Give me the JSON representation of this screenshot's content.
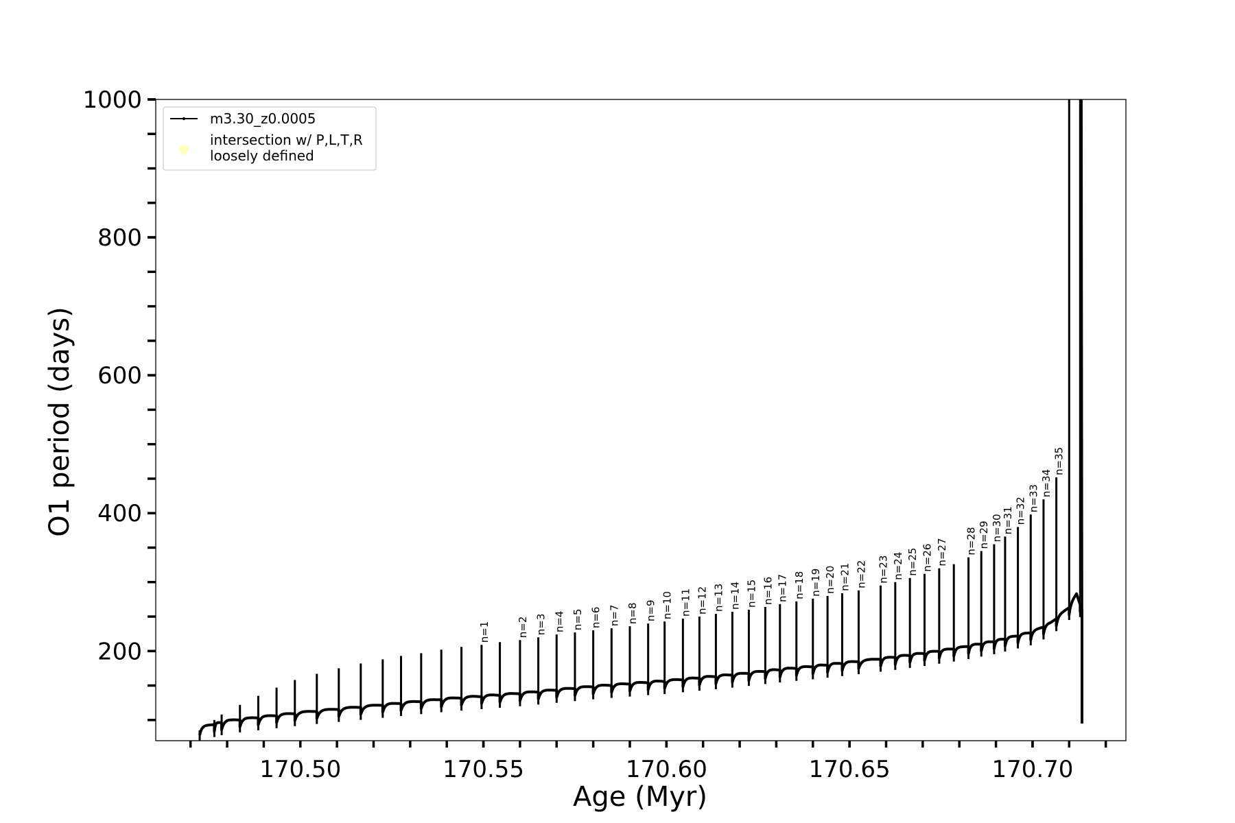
{
  "chart_data": {
    "type": "line",
    "xlabel": "Age (Myr)",
    "ylabel": "O1 period (days)",
    "xlim": [
      170.4605,
      170.7255
    ],
    "ylim": [
      70,
      1000
    ],
    "x_ticks": [
      {
        "value": 170.5,
        "label": "170.50"
      },
      {
        "value": 170.55,
        "label": "170.55"
      },
      {
        "value": 170.6,
        "label": "170.60"
      },
      {
        "value": 170.65,
        "label": "170.65"
      },
      {
        "value": 170.7,
        "label": "170.70"
      }
    ],
    "x_minor_step": 0.01,
    "y_ticks": [
      {
        "value": 200,
        "label": "200"
      },
      {
        "value": 400,
        "label": "400"
      },
      {
        "value": 600,
        "label": "600"
      },
      {
        "value": 800,
        "label": "800"
      },
      {
        "value": 1000,
        "label": "1000"
      }
    ],
    "y_minor_step": 50,
    "legend": {
      "placement": "top-left",
      "entries": [
        {
          "label": "m3.30_z0.0005",
          "style": "line",
          "color": "#000000"
        },
        {
          "label_lines": [
            "intersection w/ P,L,T,R",
            "loosely defined"
          ],
          "style": "marker",
          "color": "#ffffc0"
        }
      ]
    },
    "series": [
      {
        "color": "#000000",
        "baseline": {
          "x": [
            170.4725,
            170.48,
            170.49,
            170.5,
            170.51,
            170.52,
            170.53,
            170.54,
            170.55,
            170.56,
            170.57,
            170.58,
            170.59,
            170.6,
            170.61,
            170.62,
            170.63,
            170.64,
            170.65,
            170.66,
            170.67,
            170.68,
            170.69,
            170.7,
            170.705,
            170.71,
            170.712,
            170.7135
          ],
          "y": [
            88,
            98,
            104,
            110,
            115,
            120,
            125,
            130,
            134,
            138,
            143,
            148,
            152,
            156,
            161,
            166,
            172,
            177,
            183,
            189,
            196,
            204,
            214,
            227,
            240,
            263,
            282,
            260
          ]
        },
        "pulses": [
          {
            "x": 170.4725,
            "peak": 85
          },
          {
            "x": 170.4765,
            "peak": 100
          },
          {
            "x": 170.4785,
            "peak": 108
          },
          {
            "x": 170.4835,
            "peak": 122
          },
          {
            "x": 170.4885,
            "peak": 135
          },
          {
            "x": 170.4935,
            "peak": 147
          },
          {
            "x": 170.4985,
            "peak": 158
          },
          {
            "x": 170.5045,
            "peak": 167
          },
          {
            "x": 170.5105,
            "peak": 175
          },
          {
            "x": 170.5165,
            "peak": 182
          },
          {
            "x": 170.5225,
            "peak": 188
          },
          {
            "x": 170.5275,
            "peak": 193
          },
          {
            "x": 170.533,
            "peak": 197
          },
          {
            "x": 170.5385,
            "peak": 202
          },
          {
            "x": 170.544,
            "peak": 206
          },
          {
            "x": 170.5495,
            "peak": 209,
            "label": "n=1"
          },
          {
            "x": 170.5545,
            "peak": 213
          },
          {
            "x": 170.56,
            "peak": 216,
            "label": "n=2"
          },
          {
            "x": 170.565,
            "peak": 220,
            "label": "n=3"
          },
          {
            "x": 170.57,
            "peak": 224,
            "label": "n=4"
          },
          {
            "x": 170.575,
            "peak": 227,
            "label": "n=5"
          },
          {
            "x": 170.58,
            "peak": 230,
            "label": "n=6"
          },
          {
            "x": 170.585,
            "peak": 233,
            "label": "n=7"
          },
          {
            "x": 170.59,
            "peak": 236,
            "label": "n=8"
          },
          {
            "x": 170.595,
            "peak": 240,
            "label": "n=9"
          },
          {
            "x": 170.5995,
            "peak": 243,
            "label": "n=10"
          },
          {
            "x": 170.6045,
            "peak": 247,
            "label": "n=11"
          },
          {
            "x": 170.609,
            "peak": 250,
            "label": "n=12"
          },
          {
            "x": 170.6135,
            "peak": 254,
            "label": "n=13"
          },
          {
            "x": 170.618,
            "peak": 257,
            "label": "n=14"
          },
          {
            "x": 170.6225,
            "peak": 260,
            "label": "n=15"
          },
          {
            "x": 170.627,
            "peak": 264,
            "label": "n=16"
          },
          {
            "x": 170.631,
            "peak": 268,
            "label": "n=17"
          },
          {
            "x": 170.6355,
            "peak": 272,
            "label": "n=18"
          },
          {
            "x": 170.64,
            "peak": 276,
            "label": "n=19"
          },
          {
            "x": 170.644,
            "peak": 280,
            "label": "n=20"
          },
          {
            "x": 170.648,
            "peak": 284,
            "label": "n=21"
          },
          {
            "x": 170.6525,
            "peak": 288,
            "label": "n=22"
          },
          {
            "x": 170.6585,
            "peak": 295,
            "label": "n=23"
          },
          {
            "x": 170.6625,
            "peak": 300,
            "label": "n=24"
          },
          {
            "x": 170.6665,
            "peak": 306,
            "label": "n=25"
          },
          {
            "x": 170.6705,
            "peak": 312,
            "label": "n=26"
          },
          {
            "x": 170.6745,
            "peak": 320,
            "label": "n=27"
          },
          {
            "x": 170.6785,
            "peak": 326
          },
          {
            "x": 170.6825,
            "peak": 336,
            "label": "n=28"
          },
          {
            "x": 170.686,
            "peak": 345,
            "label": "n=29"
          },
          {
            "x": 170.6895,
            "peak": 355,
            "label": "n=30"
          },
          {
            "x": 170.6925,
            "peak": 366,
            "label": "n=31"
          },
          {
            "x": 170.696,
            "peak": 380,
            "label": "n=32"
          },
          {
            "x": 170.6995,
            "peak": 398,
            "label": "n=33"
          },
          {
            "x": 170.703,
            "peak": 420,
            "label": "n=34"
          },
          {
            "x": 170.7065,
            "peak": 452,
            "label": "n=35"
          },
          {
            "x": 170.71,
            "peak": 1000
          },
          {
            "x": 170.713,
            "peak": 1000
          }
        ],
        "final_drop": {
          "x": 170.7135,
          "y": 95
        }
      }
    ]
  }
}
